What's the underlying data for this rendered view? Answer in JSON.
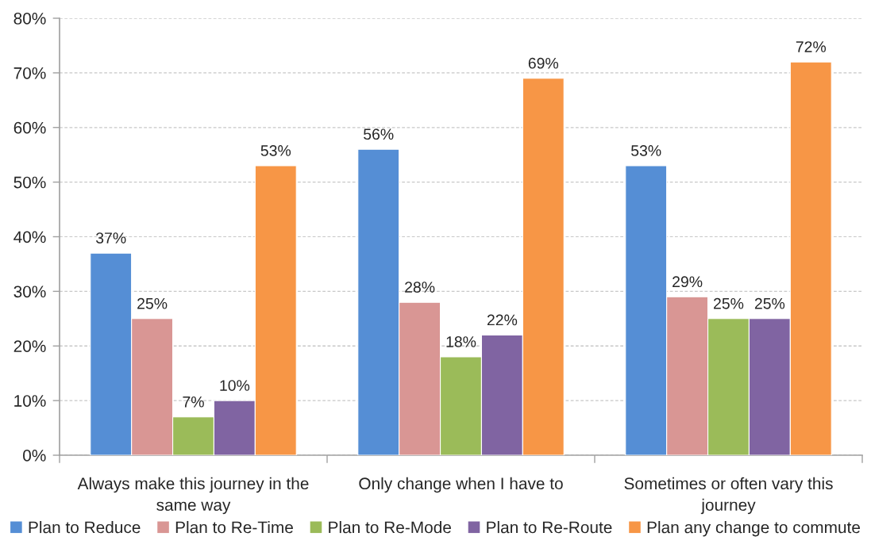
{
  "chart_data": {
    "type": "bar",
    "categories": [
      "Always make this journey in the same way",
      "Only change when I have to",
      "Sometimes or often vary this journey"
    ],
    "series": [
      {
        "name": "Plan to Reduce",
        "color": "#558ed5",
        "values": [
          37,
          56,
          53
        ],
        "value_labels": [
          "37%",
          "56%",
          "53%"
        ]
      },
      {
        "name": "Plan to Re-Time",
        "color": "#d99694",
        "values": [
          25,
          28,
          29
        ],
        "value_labels": [
          "25%",
          "28%",
          "29%"
        ]
      },
      {
        "name": "Plan to Re-Mode",
        "color": "#9bbb59",
        "values": [
          7,
          18,
          25
        ],
        "value_labels": [
          "7%",
          "18%",
          "25%"
        ]
      },
      {
        "name": "Plan to Re-Route",
        "color": "#8064a2",
        "values": [
          10,
          22,
          25
        ],
        "value_labels": [
          "10%",
          "22%",
          "25%"
        ]
      },
      {
        "name": "Plan any change to commute",
        "color": "#f79646",
        "values": [
          53,
          69,
          72
        ],
        "value_labels": [
          "53%",
          "69%",
          "72%"
        ]
      }
    ],
    "ylim": [
      0,
      80
    ],
    "yticks": [
      {
        "value": 0,
        "label": "0%"
      },
      {
        "value": 10,
        "label": "10%"
      },
      {
        "value": 20,
        "label": "20%"
      },
      {
        "value": 30,
        "label": "30%"
      },
      {
        "value": 40,
        "label": "40%"
      },
      {
        "value": 50,
        "label": "50%"
      },
      {
        "value": 60,
        "label": "60%"
      },
      {
        "value": 70,
        "label": "70%"
      },
      {
        "value": 80,
        "label": "80%"
      }
    ],
    "grid": "y",
    "legend": "bottom"
  }
}
